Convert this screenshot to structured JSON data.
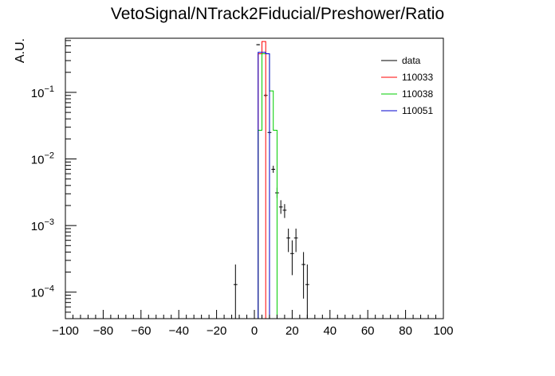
{
  "chart_data": {
    "type": "line",
    "title": "VetoSignal/NTrack2Fiducial/Preshower/Ratio",
    "xlabel": "",
    "ylabel": "A.U.",
    "xlim": [
      -100,
      100
    ],
    "ylim": [
      4e-05,
      0.65
    ],
    "y_scale": "log",
    "x_ticks": [
      -100,
      -80,
      -60,
      -40,
      -20,
      0,
      20,
      40,
      60,
      80,
      100
    ],
    "y_ticks": [
      {
        "value": 0.0001,
        "mantissa": "10",
        "exp": "−4"
      },
      {
        "value": 0.001,
        "mantissa": "10",
        "exp": "−3"
      },
      {
        "value": 0.01,
        "mantissa": "10",
        "exp": "−2"
      },
      {
        "value": 0.1,
        "mantissa": "10",
        "exp": "−1"
      }
    ],
    "grid": false,
    "legend_position": "top-right",
    "bin_width": 2,
    "series": [
      {
        "name": "data",
        "color": "#000000",
        "style": "points",
        "points": [
          {
            "x": -10,
            "y": 0.00013,
            "ylo": 4e-05,
            "yhi": 0.00026
          },
          {
            "x": 2,
            "y": 0.52,
            "ylo": 0.51,
            "yhi": 0.53
          },
          {
            "x": 4,
            "y": 0.38,
            "ylo": 0.37,
            "yhi": 0.39
          },
          {
            "x": 6,
            "y": 0.09,
            "ylo": 0.085,
            "yhi": 0.095
          },
          {
            "x": 8,
            "y": 0.025,
            "ylo": 0.023,
            "yhi": 0.027
          },
          {
            "x": 10,
            "y": 0.007,
            "ylo": 0.0062,
            "yhi": 0.0079
          },
          {
            "x": 12,
            "y": 0.0031,
            "ylo": 0.0026,
            "yhi": 0.0037
          },
          {
            "x": 14,
            "y": 0.0019,
            "ylo": 0.0015,
            "yhi": 0.0024
          },
          {
            "x": 16,
            "y": 0.0017,
            "ylo": 0.0013,
            "yhi": 0.0021
          },
          {
            "x": 18,
            "y": 0.00065,
            "ylo": 0.0004,
            "yhi": 0.0009
          },
          {
            "x": 20,
            "y": 0.00038,
            "ylo": 0.00018,
            "yhi": 0.0006
          },
          {
            "x": 22,
            "y": 0.00065,
            "ylo": 0.0004,
            "yhi": 0.0009
          },
          {
            "x": 26,
            "y": 0.00026,
            "ylo": 8e-05,
            "yhi": 0.0004
          },
          {
            "x": 28,
            "y": 0.00013,
            "ylo": 4e-05,
            "yhi": 0.00026
          }
        ]
      },
      {
        "name": "110033",
        "color": "#ff0000",
        "style": "step",
        "bins": [
          {
            "x0": 2,
            "x1": 4,
            "y": 0.38
          },
          {
            "x0": 4,
            "x1": 6,
            "y": 0.58
          },
          {
            "x0": 6,
            "x1": 8,
            "y": 4e-05
          }
        ]
      },
      {
        "name": "110038",
        "color": "#00cc00",
        "style": "step",
        "bins": [
          {
            "x0": 2,
            "x1": 4,
            "y": 0.027
          },
          {
            "x0": 4,
            "x1": 6,
            "y": 0.38
          },
          {
            "x0": 6,
            "x1": 8,
            "y": 0.38
          },
          {
            "x0": 8,
            "x1": 10,
            "y": 0.105
          },
          {
            "x0": 10,
            "x1": 12,
            "y": 0.027
          },
          {
            "x0": 12,
            "x1": 14,
            "y": 4e-05
          }
        ]
      },
      {
        "name": "110051",
        "color": "#0000cc",
        "style": "step",
        "bins": [
          {
            "x0": 0,
            "x1": 2,
            "y": 4e-05
          },
          {
            "x0": 2,
            "x1": 4,
            "y": 0.4
          },
          {
            "x0": 4,
            "x1": 6,
            "y": 0.4
          },
          {
            "x0": 6,
            "x1": 8,
            "y": 0.38
          },
          {
            "x0": 8,
            "x1": 10,
            "y": 4e-05
          }
        ]
      }
    ]
  }
}
